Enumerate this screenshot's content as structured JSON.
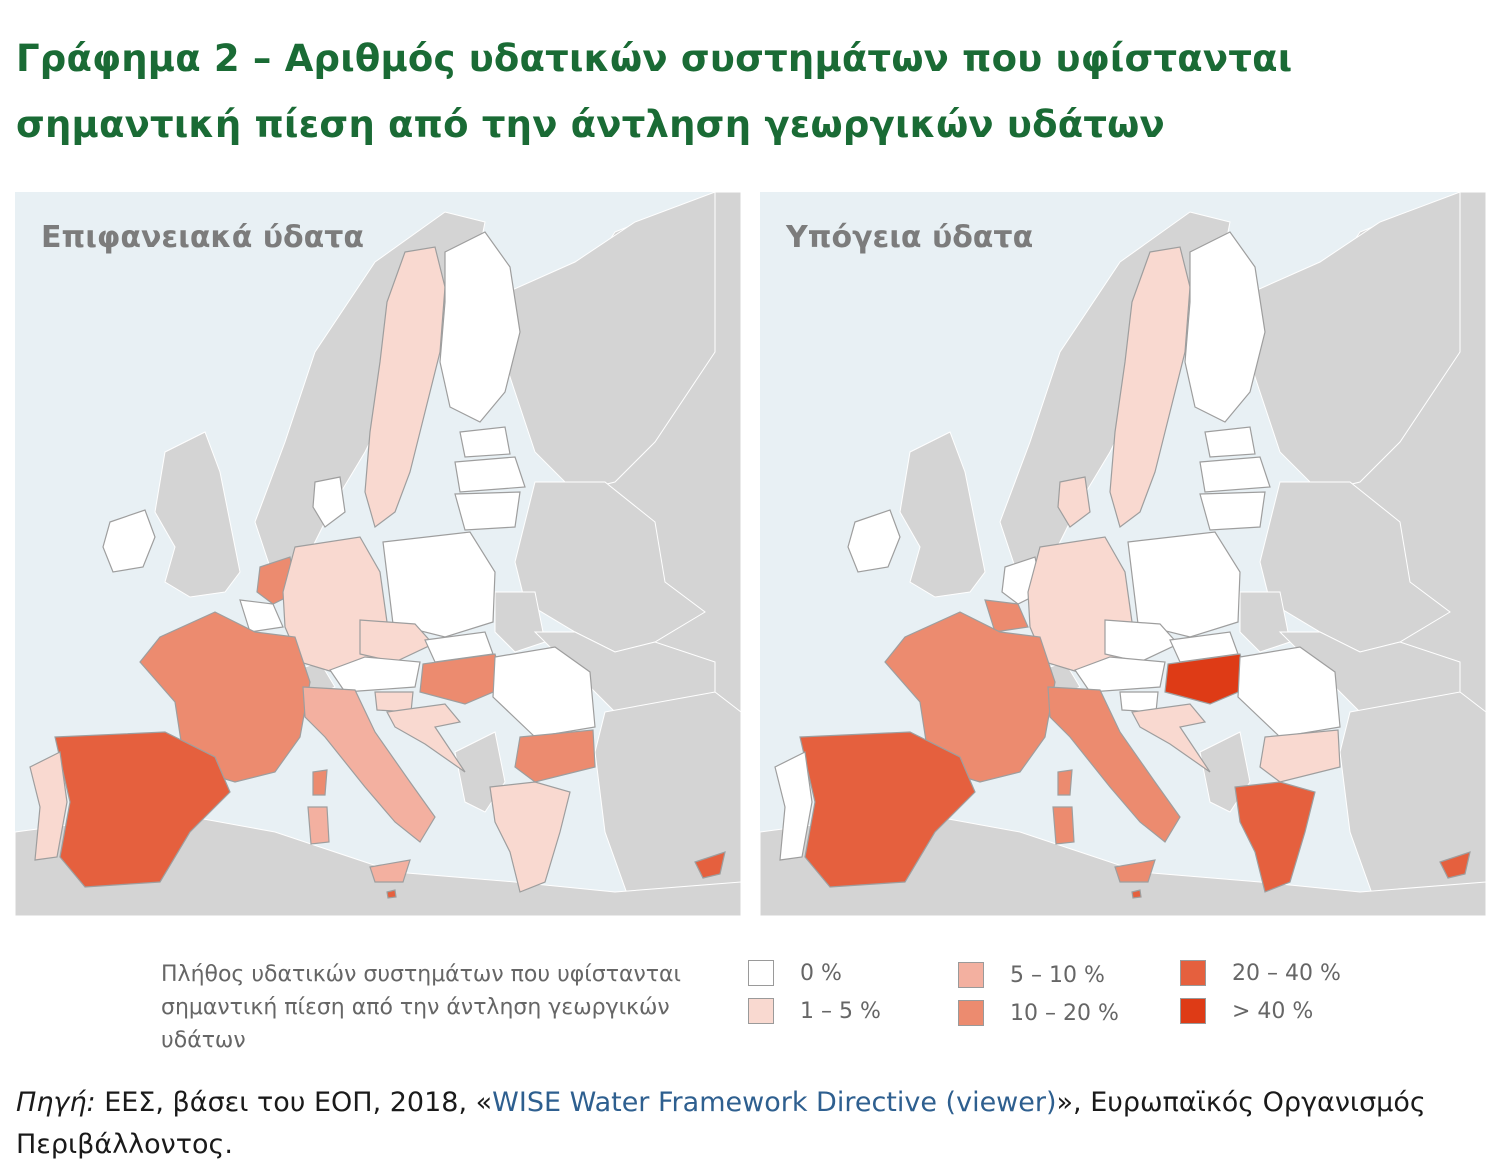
{
  "title": {
    "line1": "Γράφημα 2 – Αριθμός υδατικών συστημάτων που υφίστανται",
    "line2": "σημαντική πίεση από την άντληση γεωργικών υδάτων"
  },
  "maps": {
    "left_label": "Επιφανειακά ύδατα",
    "right_label": "Υπόγεια ύδατα"
  },
  "colors": {
    "sea": "#e8f0f4",
    "non_eu_land": "#d4d4d4",
    "border": "#9e9e9e",
    "class_0": "#ffffff",
    "class_1_5": "#f9d9d0",
    "class_5_10": "#f3b0a0",
    "class_10_20": "#ec8b6f",
    "class_20_40": "#e5603e",
    "class_40_plus": "#de3b16"
  },
  "legend": {
    "description": "Πλήθος υδατικών συστημάτων που υφίστανται σημαντική πίεση από την άντληση γεωργικών υδάτων",
    "items": [
      {
        "label": "0 %",
        "color": "#ffffff"
      },
      {
        "label": "1 – 5 %",
        "color": "#f9d9d0"
      },
      {
        "label": "5 – 10 %",
        "color": "#f3b0a0"
      },
      {
        "label": "10 – 20 %",
        "color": "#ec8b6f"
      },
      {
        "label": "20 – 40 %",
        "color": "#e5603e"
      },
      {
        "label": "> 40 %",
        "color": "#de3b16"
      }
    ]
  },
  "source": {
    "prefix": "Πηγή:",
    "text1": " ΕΕΣ, βάσει του ΕΟΠ, 2018, «",
    "link": "WISE Water Framework Directive (viewer)",
    "text2": "», Ευρωπαϊκός Οργανισμός Περιβάλλοντος."
  },
  "surface_water": {
    "sweden": "class_1_5",
    "finland": "class_0",
    "estonia": "class_0",
    "latvia": "class_0",
    "lithuania": "class_0",
    "denmark": "class_0",
    "ireland": "class_0",
    "netherlands": "class_10_20",
    "belgium": "class_0",
    "germany": "class_1_5",
    "poland": "class_0",
    "czechia": "class_1_5",
    "slovakia": "class_0",
    "austria": "class_0",
    "hungary": "class_10_20",
    "slovenia": "class_1_5",
    "croatia": "class_1_5",
    "romania": "class_0",
    "bulgaria": "class_10_20",
    "greece": "class_1_5",
    "france": "class_10_20",
    "spain": "class_20_40",
    "portugal": "class_1_5",
    "italy": "class_5_10",
    "cyprus": "class_20_40",
    "malta": "class_20_40"
  },
  "groundwater": {
    "sweden": "class_1_5",
    "finland": "class_0",
    "estonia": "class_0",
    "latvia": "class_0",
    "lithuania": "class_0",
    "denmark": "class_1_5",
    "ireland": "class_0",
    "netherlands": "class_0",
    "belgium": "class_10_20",
    "germany": "class_1_5",
    "poland": "class_0",
    "czechia": "class_0",
    "slovakia": "class_0",
    "austria": "class_0",
    "hungary": "class_40_plus",
    "slovenia": "class_0",
    "croatia": "class_1_5",
    "romania": "class_0",
    "bulgaria": "class_1_5",
    "greece": "class_20_40",
    "france": "class_10_20",
    "spain": "class_20_40",
    "portugal": "class_0",
    "italy": "class_10_20",
    "cyprus": "class_20_40",
    "malta": "class_20_40"
  }
}
